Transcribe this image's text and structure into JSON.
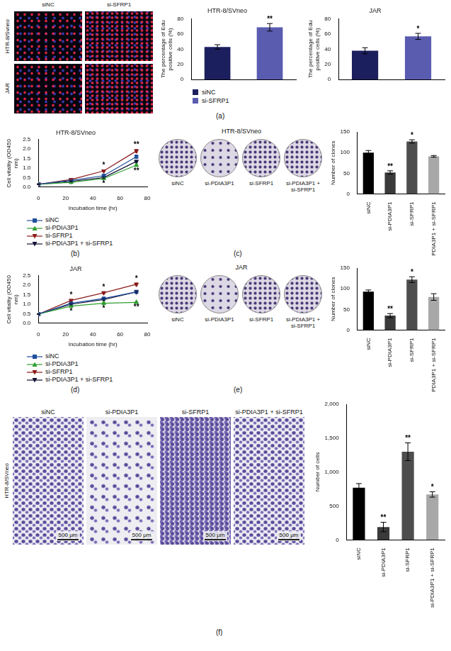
{
  "chart_data": [
    {
      "type": "bar",
      "title": "HTR-8/SVneo",
      "ylabel": "The percentage of Edu positive cells (%)",
      "categories": [
        "siNC",
        "si-SFRP1"
      ],
      "values": [
        43,
        69
      ],
      "errors": [
        3,
        5
      ],
      "significance": [
        null,
        "**"
      ],
      "colors": [
        "#1c1f5e",
        "#5a5cb0"
      ],
      "ylim": [
        0,
        80
      ],
      "yticks": [
        0,
        20,
        40,
        60,
        80
      ],
      "legend": "bottom",
      "tick_labels": "y"
    },
    {
      "type": "bar",
      "title": "JAR",
      "ylabel": "The percentage of Edu positive cells (%)",
      "categories": [
        "siNC",
        "si-SFRP1"
      ],
      "values": [
        38,
        57
      ],
      "errors": [
        4,
        4
      ],
      "significance": [
        null,
        "*"
      ],
      "colors": [
        "#1c1f5e",
        "#5a5cb0"
      ],
      "ylim": [
        0,
        80
      ],
      "yticks": [
        0,
        20,
        40,
        60,
        80
      ],
      "tick_labels": "y"
    },
    {
      "type": "line",
      "title": "HTR-8/SVneo",
      "xlabel": "Incubation time (hr)",
      "ylabel": "Cell vitality (OD450 nm)",
      "x": [
        0,
        24,
        48,
        72
      ],
      "xlim": [
        0,
        80
      ],
      "xticks": [
        0,
        20,
        40,
        60,
        80
      ],
      "ylim": [
        0,
        2.5
      ],
      "yticks": [
        {
          "value": 0,
          "label": "0.0"
        },
        {
          "value": 0.5,
          "label": "0.5"
        },
        {
          "value": 1,
          "label": "1.0"
        },
        {
          "value": 1.5,
          "label": "1.5"
        },
        {
          "value": 2,
          "label": "2.0"
        },
        {
          "value": 2.5,
          "label": "2.5"
        }
      ],
      "legend": "bottom",
      "series": [
        {
          "name": "siNC",
          "color": "#1f4e9c",
          "marker": "square",
          "values": [
            0.15,
            0.35,
            0.6,
            1.6
          ],
          "errors": [
            0.02,
            0.03,
            0.05,
            0.08
          ]
        },
        {
          "name": "si-PDIA3P1",
          "color": "#2e9e2e",
          "marker": "triangle",
          "values": [
            0.15,
            0.25,
            0.45,
            1.15
          ],
          "errors": [
            0.02,
            0.03,
            0.04,
            0.07
          ],
          "significance": [
            null,
            null,
            "*",
            "**"
          ]
        },
        {
          "name": "si-SFRP1",
          "color": "#8b1a1a",
          "marker": "triangle_down",
          "values": [
            0.15,
            0.4,
            0.85,
            1.9
          ],
          "errors": [
            0.02,
            0.03,
            0.05,
            0.08
          ],
          "significance": [
            null,
            null,
            "*",
            "**"
          ]
        },
        {
          "name": "si-PDIA3P1 + si-SFRP1",
          "color": "#111133",
          "marker": "triangle_down",
          "values": [
            0.15,
            0.3,
            0.5,
            1.35
          ],
          "errors": [
            0.02,
            0.03,
            0.04,
            0.06
          ]
        }
      ]
    },
    {
      "type": "bar",
      "ylabel": "Number of clones",
      "categories": [
        "siNC",
        "si-PDIA3P1",
        "si-SFRP1",
        "si-PDIA3P1 + si-SFRP1"
      ],
      "values": [
        100,
        52,
        127,
        91
      ],
      "errors": [
        5,
        4,
        4,
        2
      ],
      "significance": [
        null,
        "**",
        "*",
        null
      ],
      "colors": [
        "#000000",
        "#3a3a3a",
        "#4d4d4d",
        "#a8a8a8"
      ],
      "ylim": [
        0,
        150
      ],
      "yticks": [
        0,
        50,
        100,
        150
      ]
    },
    {
      "type": "line",
      "title": "JAR",
      "xlabel": "Incubation time (hr)",
      "ylabel": "Cell vitality (OD450 nm)",
      "x": [
        0,
        24,
        48,
        72
      ],
      "xlim": [
        0,
        80
      ],
      "xticks": [
        0,
        20,
        40,
        60,
        80
      ],
      "ylim": [
        0,
        2.5
      ],
      "yticks": [
        {
          "value": 0,
          "label": "0.0"
        },
        {
          "value": 0.5,
          "label": "0.5"
        },
        {
          "value": 1,
          "label": "1.0"
        },
        {
          "value": 1.5,
          "label": "1.5"
        },
        {
          "value": 2,
          "label": "2.0"
        },
        {
          "value": 2.5,
          "label": "2.5"
        }
      ],
      "legend": "bottom",
      "series": [
        {
          "name": "siNC",
          "color": "#1f4e9c",
          "marker": "square",
          "values": [
            0.48,
            1.05,
            1.3,
            1.65
          ],
          "errors": [
            0.02,
            0.05,
            0.05,
            0.05
          ]
        },
        {
          "name": "si-PDIA3P1",
          "color": "#2e9e2e",
          "marker": "triangle",
          "values": [
            0.48,
            0.9,
            1.05,
            1.1
          ],
          "errors": [
            0.02,
            0.05,
            0.06,
            0.04
          ],
          "significance": [
            null,
            "*",
            "*",
            "**"
          ]
        },
        {
          "name": "si-SFRP1",
          "color": "#8b1a1a",
          "marker": "triangle_down",
          "values": [
            0.48,
            1.2,
            1.6,
            2.05
          ],
          "errors": [
            0.02,
            0.05,
            0.06,
            0.07
          ],
          "significance": [
            null,
            "*",
            "*",
            "*"
          ]
        },
        {
          "name": "si-PDIA3P1 + si-SFRP1",
          "color": "#111133",
          "marker": "triangle_down",
          "values": [
            0.48,
            1.0,
            1.25,
            1.65
          ],
          "errors": [
            0.02,
            0.04,
            0.05,
            0.05
          ]
        }
      ]
    },
    {
      "type": "bar",
      "ylabel": "Number of clones",
      "categories": [
        "siNC",
        "si-PDIA3P1",
        "si-SFRP1",
        "si-PDIA3P1 + si-SFRP1"
      ],
      "values": [
        93,
        35,
        122,
        80
      ],
      "errors": [
        4,
        5,
        7,
        8
      ],
      "significance": [
        null,
        "**",
        "*",
        null
      ],
      "colors": [
        "#000000",
        "#3a3a3a",
        "#4d4d4d",
        "#a8a8a8"
      ],
      "ylim": [
        0,
        150
      ],
      "yticks": [
        0,
        50,
        100,
        150
      ]
    },
    {
      "type": "bar",
      "ylabel": "Number of cells",
      "categories": [
        "siNC",
        "si-PDIA3P1",
        "si-SFRP1",
        "si-PDIA3P1 + si-SFRP1"
      ],
      "values": [
        770,
        190,
        1300,
        670
      ],
      "errors": [
        60,
        70,
        130,
        40
      ],
      "significance": [
        null,
        "**",
        "**",
        "*"
      ],
      "colors": [
        "#000000",
        "#3a3a3a",
        "#4d4d4d",
        "#a8a8a8"
      ],
      "ylim": [
        0,
        2000
      ],
      "yticks": [
        0,
        500,
        {
          "value": 1000,
          "label": "1,000"
        },
        {
          "value": 1500,
          "label": "1,500"
        },
        {
          "value": 2000,
          "label": "2,000"
        }
      ]
    }
  ],
  "figure": {
    "panel_letters": [
      "(a)",
      "(b)",
      "(c)",
      "(d)",
      "(e)",
      "(f)"
    ],
    "image_panels": [
      {
        "column_labels": [
          "siNC",
          "si-SFRP1"
        ],
        "row_labels": [
          "HTR-8/Svneo",
          "JAR"
        ]
      },
      {
        "title": "HTR-8/SVneo",
        "labels": [
          "siNC",
          "si-PDIA3P1",
          "si-SFRP1",
          "si-PDIA3P1 + si-SFRP1"
        ]
      },
      {
        "title": "JAR",
        "labels": [
          "siNC",
          "si-PDIA3P1",
          "si-SFRP1",
          "si-PDIA3P1 + si-SFRP1"
        ]
      },
      {
        "row_label": "HTR-8/SVneo",
        "labels": [
          "siNC",
          "si-PDIA3P1",
          "si-SFRP1",
          "si-PDIA3P1 + si-SFRP1"
        ],
        "scale_bar": "500 μm"
      }
    ]
  }
}
